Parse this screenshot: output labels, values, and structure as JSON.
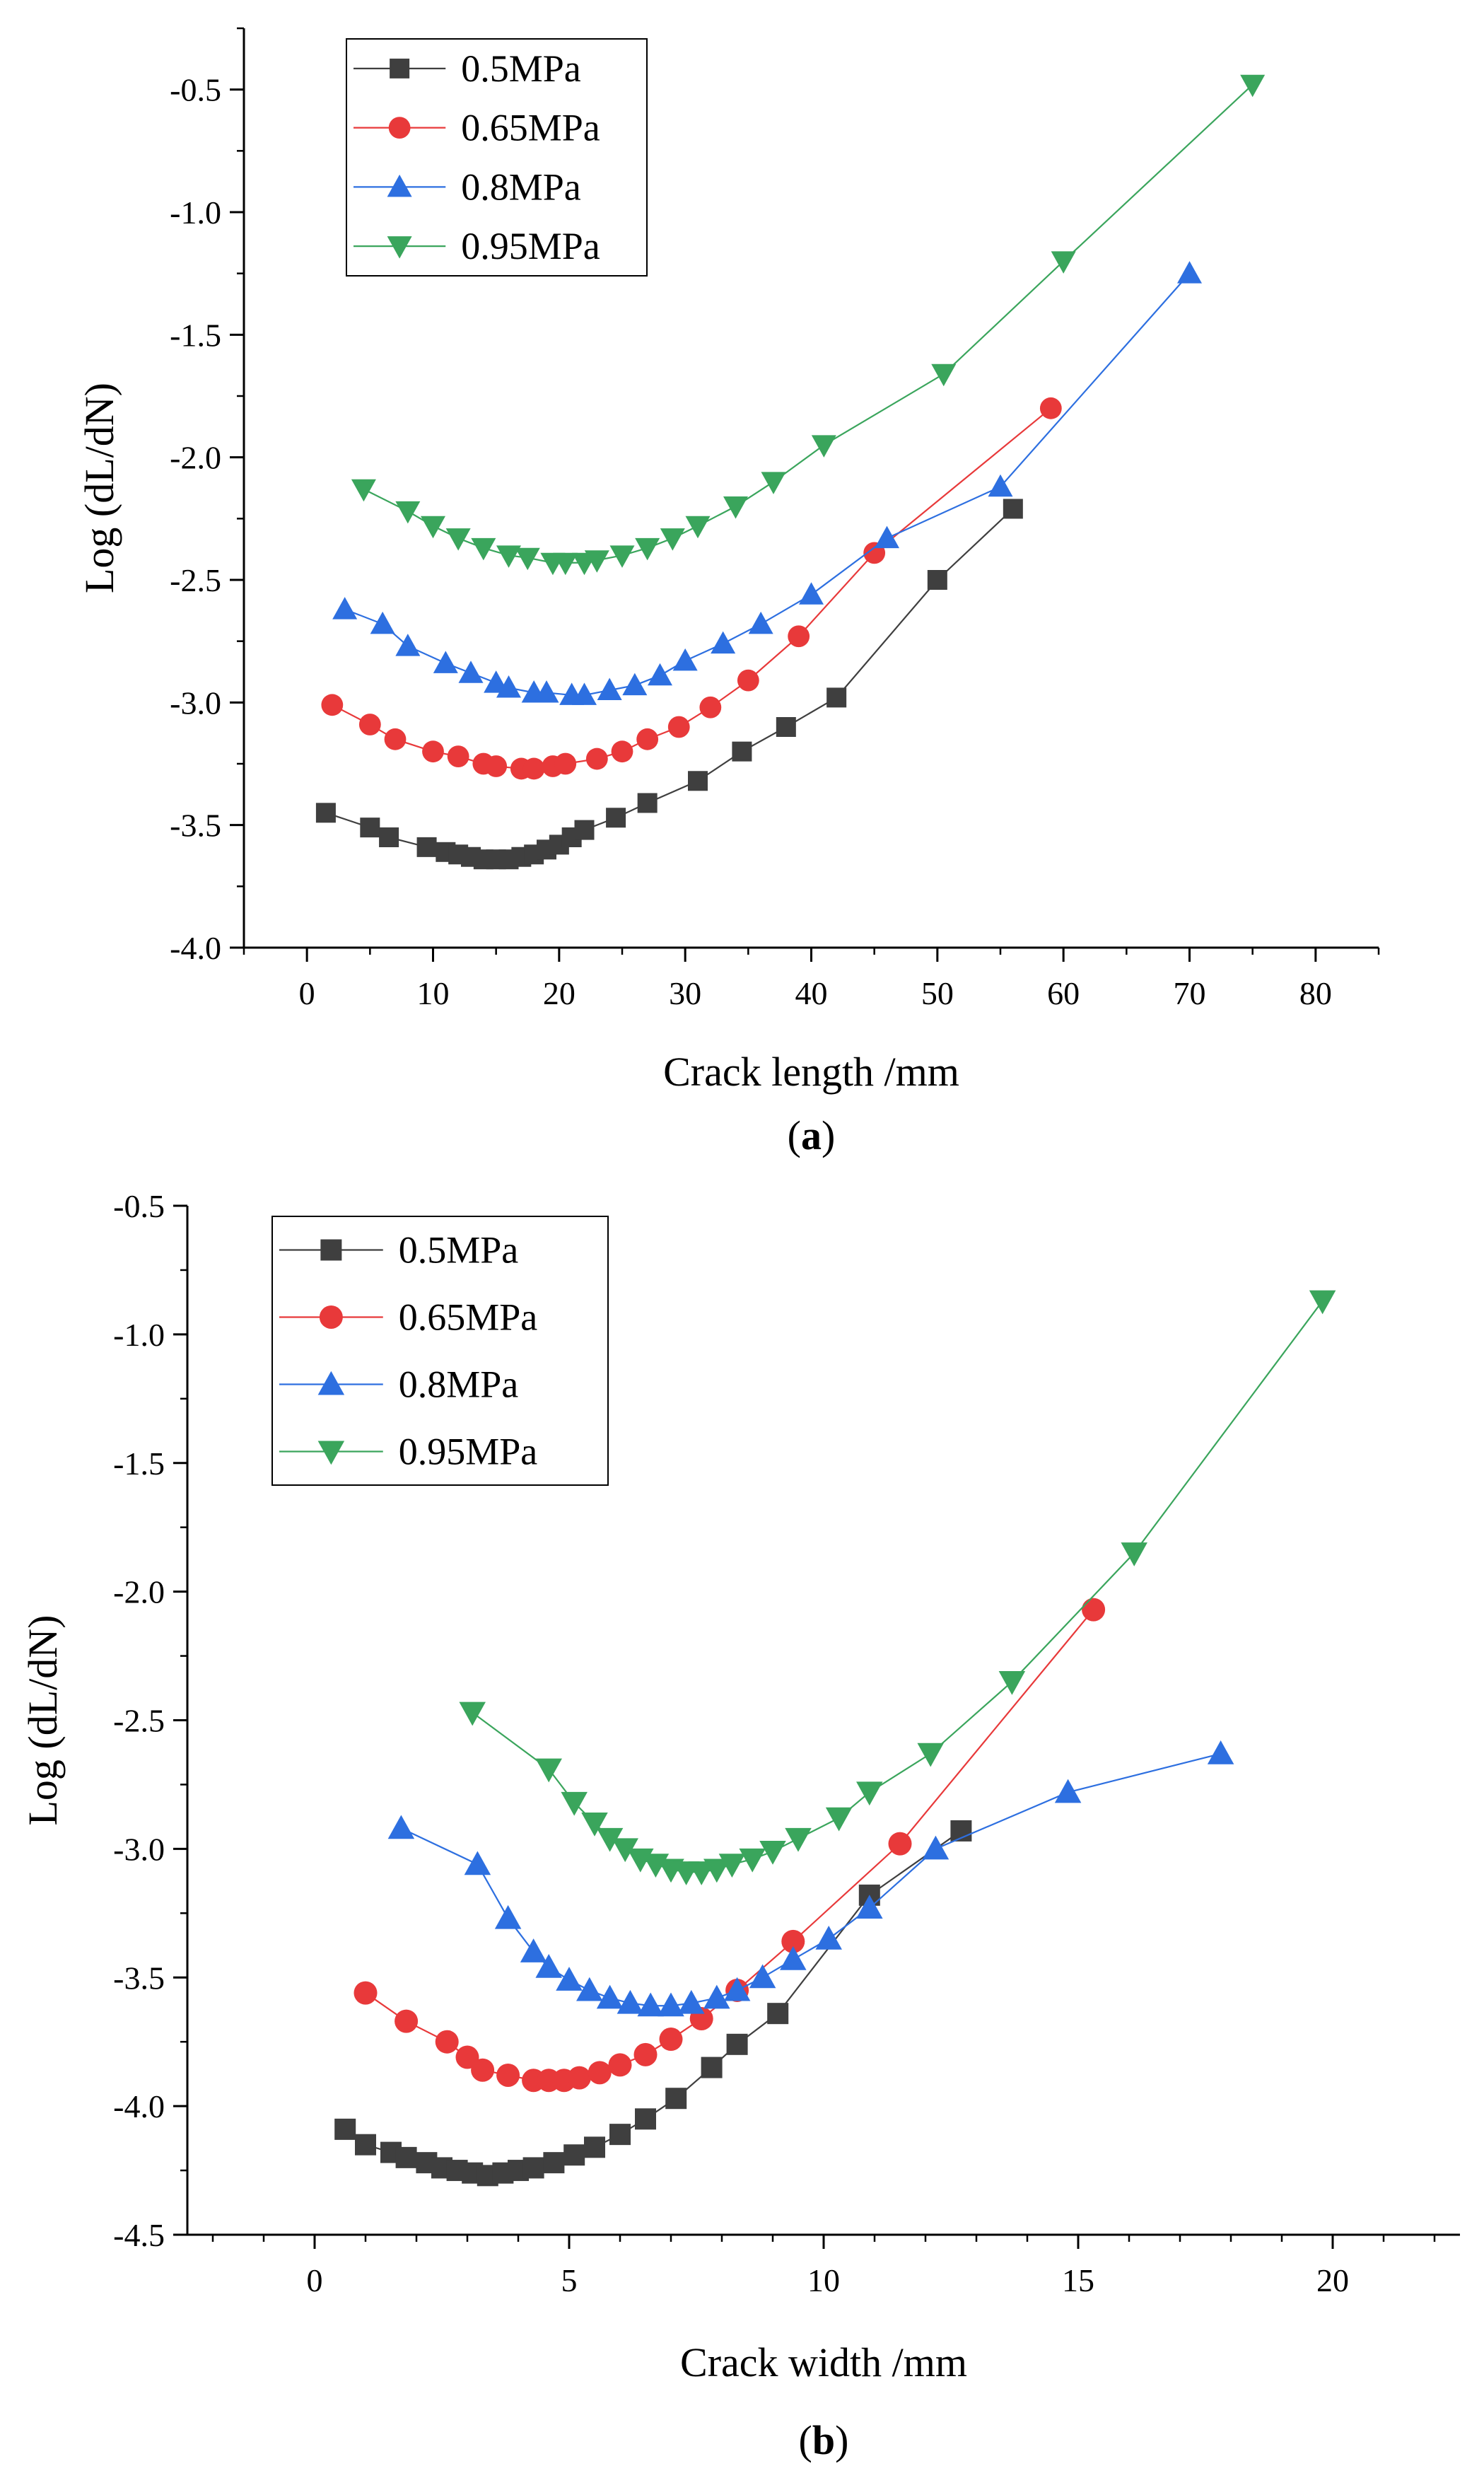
{
  "chart_data": [
    {
      "type": "line",
      "panel_label": "a",
      "xlabel": "Crack length /mm",
      "ylabel": "Log (dL/dN)",
      "xlim": [
        -5,
        85
      ],
      "ylim": [
        -4.0,
        -0.25
      ],
      "xticks": [
        0,
        10,
        20,
        30,
        40,
        50,
        60,
        70,
        80
      ],
      "yticks": [
        -4.0,
        -3.5,
        -3.0,
        -2.5,
        -2.0,
        -1.5,
        -1.0,
        -0.5
      ],
      "xtick_labels": [
        "0",
        "10",
        "20",
        "30",
        "40",
        "50",
        "60",
        "70",
        "80"
      ],
      "ytick_labels": [
        "-4.0",
        "-3.5",
        "-3.0",
        "-2.5",
        "-2.0",
        "-1.5",
        "-1.0",
        "-0.5"
      ],
      "legend_position": "top-left",
      "series": [
        {
          "name": "0.5MPa",
          "color": "#3f3f3f",
          "marker": "square",
          "x": [
            1.5,
            5,
            6.5,
            9.5,
            11,
            12,
            13,
            14,
            15,
            16,
            17,
            18,
            19,
            20,
            21,
            22,
            24.5,
            27,
            31,
            34.5,
            38,
            42,
            50,
            56
          ],
          "y": [
            -3.45,
            -3.51,
            -3.55,
            -3.59,
            -3.61,
            -3.62,
            -3.63,
            -3.64,
            -3.64,
            -3.64,
            -3.63,
            -3.62,
            -3.6,
            -3.58,
            -3.55,
            -3.52,
            -3.47,
            -3.41,
            -3.32,
            -3.2,
            -3.1,
            -2.98,
            -2.5,
            -2.21
          ]
        },
        {
          "name": "0.65MPa",
          "color": "#e8393a",
          "marker": "circle",
          "x": [
            2,
            5,
            7,
            10,
            12,
            14,
            15,
            17,
            18,
            19.5,
            20.5,
            23,
            25,
            27,
            29.5,
            32,
            35,
            39,
            45,
            59
          ],
          "y": [
            -3.01,
            -3.09,
            -3.15,
            -3.2,
            -3.22,
            -3.25,
            -3.26,
            -3.27,
            -3.27,
            -3.26,
            -3.25,
            -3.23,
            -3.2,
            -3.15,
            -3.1,
            -3.02,
            -2.91,
            -2.73,
            -2.39,
            -1.8
          ]
        },
        {
          "name": "0.8MPa",
          "color": "#2d6fe0",
          "marker": "triangle-up",
          "x": [
            3,
            6,
            8,
            11,
            13,
            15,
            16,
            18,
            19,
            21,
            22,
            24,
            26,
            28,
            30,
            33,
            36,
            40,
            46,
            55,
            70
          ],
          "y": [
            -2.62,
            -2.68,
            -2.77,
            -2.84,
            -2.88,
            -2.92,
            -2.94,
            -2.96,
            -2.96,
            -2.97,
            -2.97,
            -2.95,
            -2.93,
            -2.89,
            -2.83,
            -2.76,
            -2.68,
            -2.56,
            -2.33,
            -2.12,
            -1.25
          ]
        },
        {
          "name": "0.95MPa",
          "color": "#3aa55c",
          "marker": "triangle-down",
          "x": [
            4.5,
            8,
            10,
            12,
            14,
            16,
            17.5,
            19.5,
            20.5,
            22,
            23,
            25,
            27,
            29,
            31,
            34,
            37,
            41,
            50.5,
            60,
            75
          ],
          "y": [
            -2.13,
            -2.22,
            -2.28,
            -2.33,
            -2.37,
            -2.4,
            -2.41,
            -2.43,
            -2.43,
            -2.43,
            -2.42,
            -2.4,
            -2.37,
            -2.33,
            -2.28,
            -2.2,
            -2.1,
            -1.95,
            -1.66,
            -1.2,
            -0.48
          ]
        }
      ]
    },
    {
      "type": "line",
      "panel_label": "b",
      "xlabel": "Crack width /mm",
      "ylabel": "Log (dL/dN)",
      "xlim": [
        -2.5,
        22.5
      ],
      "ylim": [
        -4.5,
        -0.5
      ],
      "xticks": [
        0,
        5,
        10,
        15,
        20
      ],
      "yticks": [
        -4.5,
        -4.0,
        -3.5,
        -3.0,
        -2.5,
        -2.0,
        -1.5,
        -1.0,
        -0.5
      ],
      "xtick_labels": [
        "0",
        "5",
        "10",
        "15",
        "20"
      ],
      "ytick_labels": [
        "-4.5",
        "-4.0",
        "-3.5",
        "-3.0",
        "-2.5",
        "-2.0",
        "-1.5",
        "-1.0",
        "-0.5"
      ],
      "legend_position": "top-left",
      "series": [
        {
          "name": "0.5MPa",
          "color": "#3f3f3f",
          "marker": "square",
          "x": [
            0.6,
            1.0,
            1.5,
            1.8,
            2.2,
            2.5,
            2.8,
            3.1,
            3.4,
            3.7,
            4.0,
            4.3,
            4.7,
            5.1,
            5.5,
            6.0,
            6.5,
            7.1,
            7.8,
            8.3,
            9.1,
            10.9,
            12.7
          ],
          "y": [
            -4.09,
            -4.15,
            -4.18,
            -4.2,
            -4.22,
            -4.24,
            -4.25,
            -4.26,
            -4.27,
            -4.26,
            -4.25,
            -4.24,
            -4.22,
            -4.19,
            -4.16,
            -4.11,
            -4.05,
            -3.97,
            -3.85,
            -3.76,
            -3.64,
            -3.18,
            -2.93
          ]
        },
        {
          "name": "0.65MPa",
          "color": "#e8393a",
          "marker": "circle",
          "x": [
            1.0,
            1.8,
            2.6,
            3.0,
            3.3,
            3.8,
            4.3,
            4.6,
            4.9,
            5.2,
            5.6,
            6.0,
            6.5,
            7.0,
            7.6,
            8.3,
            9.4,
            11.5,
            15.3
          ],
          "y": [
            -3.56,
            -3.67,
            -3.75,
            -3.81,
            -3.86,
            -3.88,
            -3.9,
            -3.9,
            -3.9,
            -3.89,
            -3.87,
            -3.84,
            -3.8,
            -3.74,
            -3.66,
            -3.55,
            -3.36,
            -2.98,
            -2.07
          ]
        },
        {
          "name": "0.8MPa",
          "color": "#2d6fe0",
          "marker": "triangle-up",
          "x": [
            1.7,
            3.2,
            3.8,
            4.3,
            4.6,
            5.0,
            5.4,
            5.8,
            6.2,
            6.6,
            7.0,
            7.4,
            7.9,
            8.3,
            8.8,
            9.4,
            10.1,
            10.9,
            12.2,
            14.8,
            17.8
          ],
          "y": [
            -2.92,
            -3.06,
            -3.27,
            -3.4,
            -3.46,
            -3.51,
            -3.55,
            -3.58,
            -3.6,
            -3.61,
            -3.61,
            -3.6,
            -3.58,
            -3.55,
            -3.5,
            -3.43,
            -3.35,
            -3.23,
            -3.0,
            -2.78,
            -2.63
          ]
        },
        {
          "name": "0.95MPa",
          "color": "#3aa55c",
          "marker": "triangle-down",
          "x": [
            3.1,
            4.6,
            5.1,
            5.5,
            5.8,
            6.1,
            6.4,
            6.7,
            7.0,
            7.3,
            7.6,
            7.9,
            8.2,
            8.6,
            9.0,
            9.5,
            10.3,
            10.9,
            12.1,
            13.7,
            16.1,
            19.8
          ],
          "y": [
            -2.47,
            -2.69,
            -2.82,
            -2.9,
            -2.96,
            -3.0,
            -3.04,
            -3.06,
            -3.08,
            -3.09,
            -3.09,
            -3.08,
            -3.06,
            -3.04,
            -3.01,
            -2.96,
            -2.88,
            -2.78,
            -2.63,
            -2.35,
            -1.85,
            -0.87
          ]
        }
      ]
    }
  ]
}
